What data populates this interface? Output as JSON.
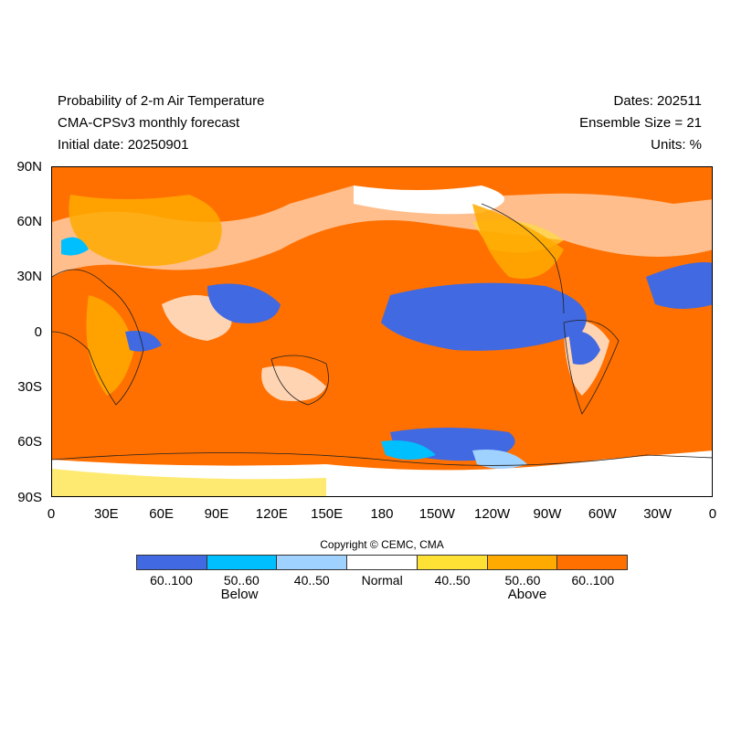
{
  "header": {
    "title": "Probability of 2-m Air Temperature",
    "model": "CMA-CPSv3 monthly forecast",
    "initial": "Initial date: 20250901",
    "dates": "Dates: 202511",
    "ensemble": "Ensemble Size = 21",
    "units": "Units: %"
  },
  "map": {
    "lat_ticks": [
      "90N",
      "60N",
      "30N",
      "0",
      "30S",
      "60S",
      "90S"
    ],
    "lon_ticks": [
      "0",
      "30E",
      "60E",
      "90E",
      "120E",
      "150E",
      "180",
      "150W",
      "120W",
      "90W",
      "60W",
      "30W",
      "0"
    ]
  },
  "legend": {
    "copyright": "Copyright © CEMC, CMA",
    "bins": [
      {
        "label": "60..100",
        "color": "#4169e1"
      },
      {
        "label": "50..60",
        "color": "#00bfff"
      },
      {
        "label": "40..50",
        "color": "#a0d2ff"
      },
      {
        "label": "Normal",
        "color": "#ffffff"
      },
      {
        "label": "40..50",
        "color": "#ffe135"
      },
      {
        "label": "50..60",
        "color": "#ffaa00"
      },
      {
        "label": "60..100",
        "color": "#ff7000"
      }
    ],
    "below": "Below",
    "above": "Above"
  }
}
